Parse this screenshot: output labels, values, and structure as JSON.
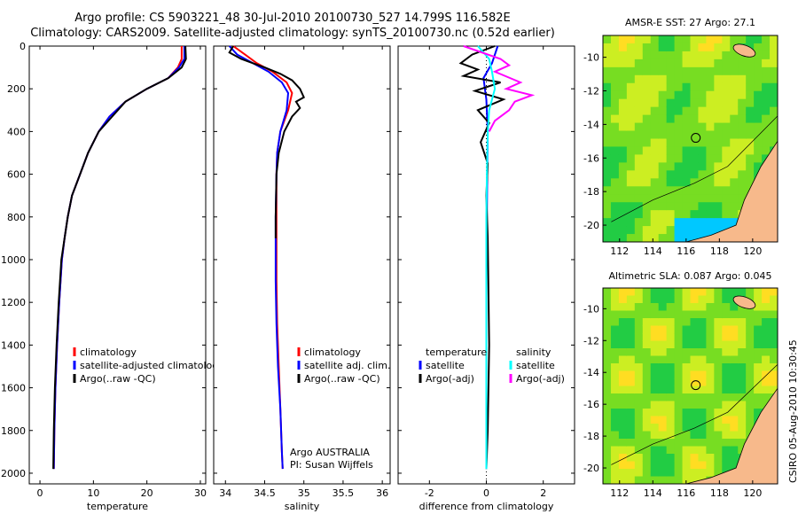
{
  "header": {
    "title_line1": "Argo profile: CS 5903221_48 30-Jul-2010 20100730_527 14.799S 116.582E",
    "title_line2": "Climatology: CARS2009. Satellite-adjusted climatology: synTS_20100730.nc (0.52d earlier)"
  },
  "colors": {
    "climatology": "#ff0000",
    "satellite": "#0000ff",
    "argo": "#000000",
    "sal_satellite": "#00ffff",
    "sal_argo": "#ff00ff"
  },
  "depth_axis": {
    "ticks": [
      0,
      200,
      400,
      600,
      800,
      1000,
      1200,
      1400,
      1600,
      1800,
      2000
    ],
    "range": [
      0,
      2050
    ]
  },
  "chart_data": [
    {
      "type": "line",
      "xlabel": "temperature",
      "xlim": [
        -2,
        31
      ],
      "xticks": [
        0,
        10,
        20,
        30
      ],
      "legend": [
        "climatology",
        "satellite-adjusted climatolog",
        "Argo(..raw -QC)"
      ],
      "series": [
        {
          "name": "climatology",
          "color": "#ff0000",
          "x": [
            26.5,
            26.5,
            25.8,
            24,
            20,
            16,
            13,
            11,
            9,
            7.5,
            6,
            5.2,
            4.6,
            4.1,
            3.6,
            3.2,
            2.9,
            2.7,
            2.6
          ],
          "y": [
            0,
            60,
            100,
            150,
            200,
            260,
            330,
            400,
            500,
            600,
            700,
            800,
            900,
            1000,
            1200,
            1400,
            1600,
            1800,
            1980
          ]
        },
        {
          "name": "satellite-adjusted climatology",
          "color": "#0000ff",
          "x": [
            27,
            27,
            26,
            24,
            20,
            16,
            13,
            11,
            9,
            7.5,
            6,
            5.2,
            4.6,
            4.1,
            3.6,
            3.2,
            2.9,
            2.7,
            2.6
          ],
          "y": [
            0,
            60,
            100,
            150,
            200,
            260,
            330,
            400,
            500,
            600,
            700,
            800,
            900,
            1000,
            1200,
            1400,
            1600,
            1800,
            1980
          ]
        },
        {
          "name": "Argo",
          "color": "#000000",
          "x": [
            27.2,
            27.3,
            26.5,
            24,
            20,
            16,
            13.5,
            11,
            9,
            7.5,
            6,
            5.2,
            4.6,
            4,
            3.5,
            3.1,
            2.8,
            2.6,
            2.5
          ],
          "y": [
            0,
            60,
            100,
            150,
            200,
            260,
            330,
            400,
            500,
            600,
            700,
            800,
            900,
            1000,
            1200,
            1400,
            1600,
            1800,
            1980
          ]
        }
      ]
    },
    {
      "type": "line",
      "xlabel": "salinity",
      "xlim": [
        33.85,
        36.1
      ],
      "xticks": [
        34,
        34.5,
        35,
        35.5,
        36
      ],
      "legend": [
        "climatology",
        "satellite adj. clim.",
        "Argo(..raw -QC)"
      ],
      "annotation": [
        "Argo AUSTRALIA",
        "PI: Susan Wijffels"
      ],
      "series": [
        {
          "name": "climatology",
          "color": "#ff0000",
          "x": [
            34.1,
            34.25,
            34.4,
            34.6,
            34.78,
            34.85,
            34.8,
            34.7,
            34.66,
            34.65,
            34.65,
            34.65,
            34.65,
            34.66,
            34.68,
            34.7,
            34.72,
            34.73
          ],
          "y": [
            0,
            40,
            80,
            120,
            170,
            220,
            300,
            400,
            500,
            600,
            800,
            1000,
            1100,
            1300,
            1500,
            1700,
            1900,
            1980
          ]
        },
        {
          "name": "satellite adj. clim.",
          "color": "#0000ff",
          "x": [
            34.05,
            34.15,
            34.35,
            34.55,
            34.72,
            34.8,
            34.78,
            34.7,
            34.66,
            34.65,
            34.64,
            34.64,
            34.64,
            34.65,
            34.67,
            34.7,
            34.72,
            34.73
          ],
          "y": [
            0,
            40,
            80,
            120,
            170,
            220,
            300,
            400,
            500,
            600,
            800,
            1000,
            1100,
            1300,
            1500,
            1700,
            1900,
            1980
          ]
        },
        {
          "name": "Argo",
          "color": "#000000",
          "x": [
            34.1,
            34.05,
            34.2,
            34.35,
            34.5,
            34.7,
            34.85,
            34.95,
            35,
            34.9,
            34.95,
            34.85,
            34.75,
            34.68,
            34.65,
            34.64,
            34.64
          ],
          "y": [
            0,
            30,
            60,
            80,
            100,
            130,
            160,
            200,
            240,
            260,
            290,
            330,
            400,
            500,
            600,
            800,
            900
          ]
        }
      ]
    },
    {
      "type": "line",
      "xlabel": "difference from climatology",
      "xlim": [
        -3.1,
        3.1
      ],
      "xticks": [
        -2,
        0,
        2
      ],
      "legend": [
        "temperature",
        "satellite",
        "Argo(-adj)",
        "salinity",
        "satellite",
        "Argo(-adj)"
      ],
      "series": [
        {
          "name": "temperature satellite",
          "color": "#0000ff",
          "x": [
            0.4,
            0.2,
            -0.1,
            0,
            0.05,
            0.03,
            0.02,
            0,
            0,
            0,
            0
          ],
          "y": [
            0,
            80,
            150,
            250,
            400,
            600,
            800,
            1000,
            1400,
            1800,
            1980
          ]
        },
        {
          "name": "temperature Argo(-adj)",
          "color": "#000000",
          "x": [
            0.3,
            -0.5,
            -0.9,
            -0.3,
            -0.8,
            0.5,
            -0.4,
            0.6,
            -0.3,
            0.1,
            -0.2,
            0.05,
            0,
            0.05,
            0.1,
            0.05,
            0
          ],
          "y": [
            0,
            40,
            80,
            110,
            140,
            170,
            210,
            250,
            300,
            360,
            450,
            550,
            700,
            900,
            1400,
            1800,
            1980
          ]
        },
        {
          "name": "salinity satellite",
          "color": "#00ffff",
          "x": [
            -0.3,
            0.1,
            0.2,
            0.3,
            0.2,
            0.1,
            0.05,
            0.02,
            0,
            0,
            0,
            0
          ],
          "y": [
            0,
            60,
            120,
            200,
            250,
            300,
            400,
            600,
            800,
            1000,
            1400,
            1980
          ]
        },
        {
          "name": "salinity Argo(-adj)",
          "color": "#ff00ff",
          "x": [
            -0.8,
            0.5,
            0.8,
            0.3,
            1.2,
            0.7,
            1.6,
            1.0,
            0.8,
            0.3,
            0.1
          ],
          "y": [
            0,
            60,
            90,
            120,
            170,
            200,
            230,
            260,
            300,
            350,
            400
          ]
        }
      ]
    }
  ],
  "maps": [
    {
      "title": "AMSR-E SST: 27 Argo: 27.1",
      "xticks": [
        112,
        114,
        116,
        118,
        120
      ],
      "yticks": [
        -10,
        -12,
        -14,
        -16,
        -18,
        -20
      ],
      "xlim": [
        111,
        121.5
      ],
      "ylim": [
        -21,
        -8.7
      ],
      "marker": [
        116.58,
        -14.8
      ]
    },
    {
      "title": "Altimetric SLA: 0.087 Argo: 0.045",
      "xticks": [
        112,
        114,
        116,
        118,
        120
      ],
      "yticks": [
        -10,
        -12,
        -14,
        -16,
        -18,
        -20
      ],
      "xlim": [
        111,
        121.5
      ],
      "ylim": [
        -21,
        -8.7
      ],
      "marker": [
        116.58,
        -14.8
      ]
    }
  ],
  "side_label": "CSIRO 05-Aug-2010 10:30:45"
}
